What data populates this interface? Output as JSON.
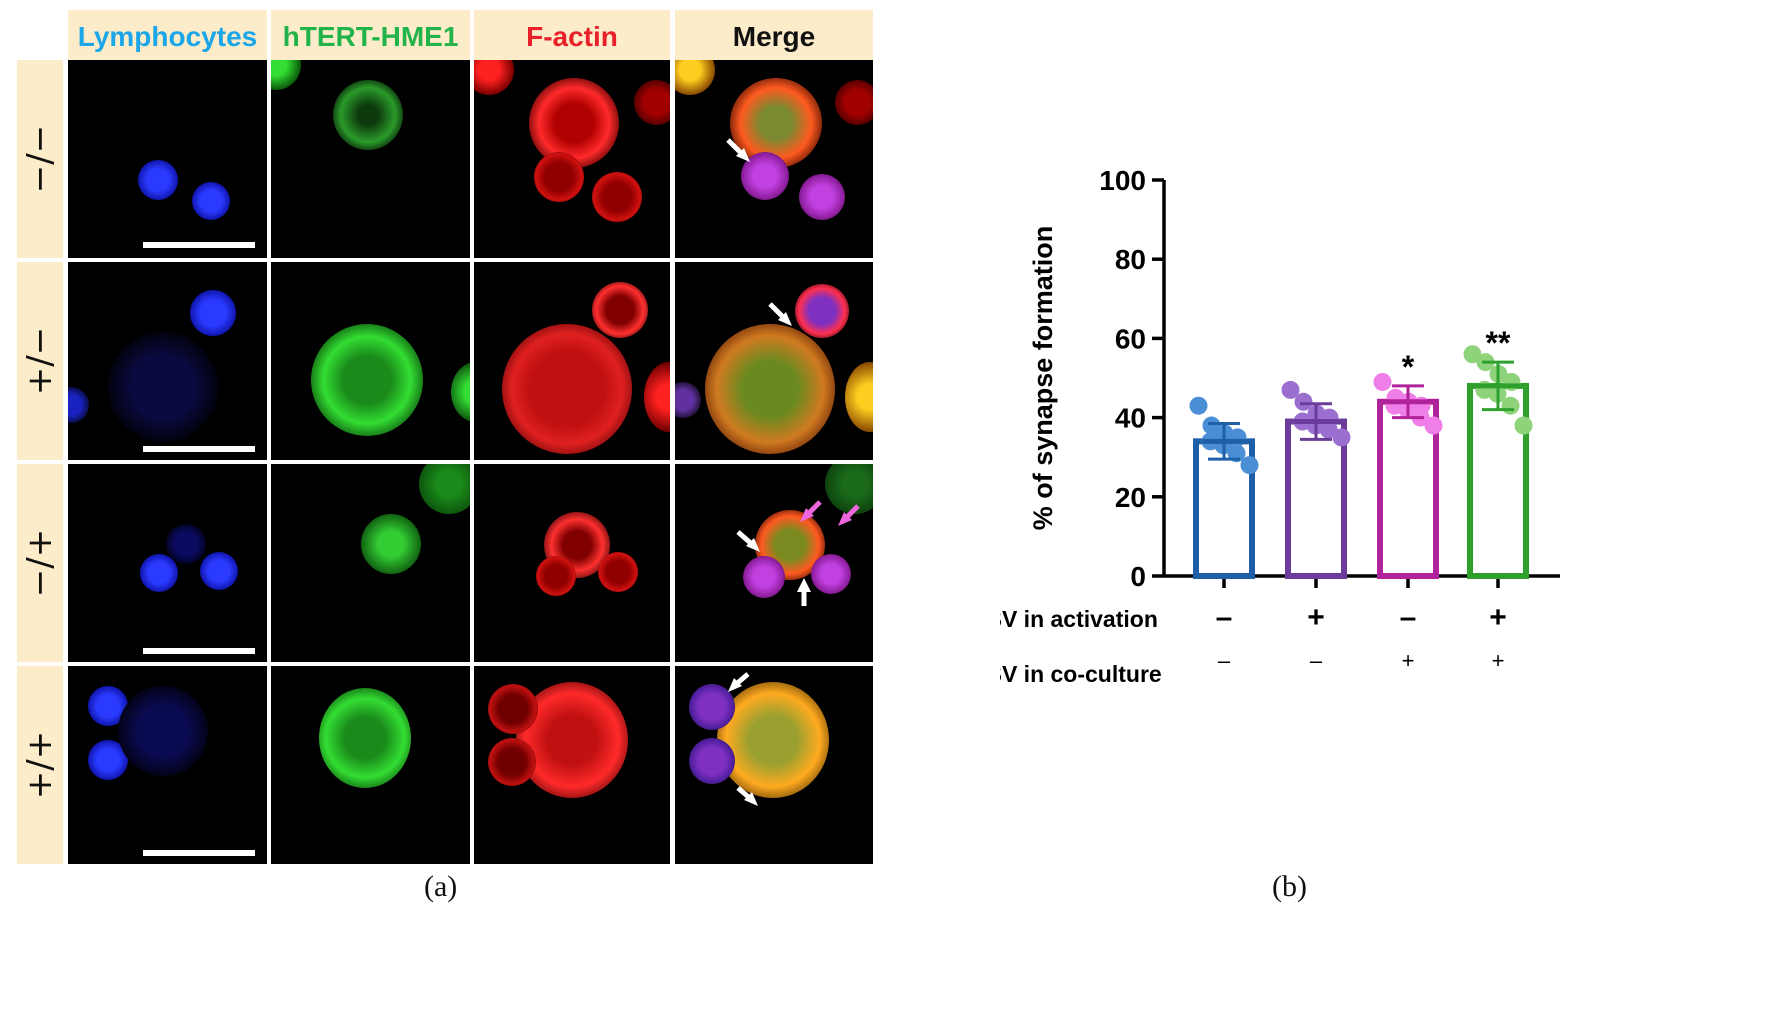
{
  "panel_a": {
    "column_headers": [
      {
        "label": "Lymphocytes",
        "color": "#1aa6e8"
      },
      {
        "label": "hTERT-HME1",
        "color": "#22b34a"
      },
      {
        "label": "F-actin",
        "color": "#e8202a"
      },
      {
        "label": "Merge",
        "color": "#111111"
      }
    ],
    "row_labels": [
      "−/−",
      "+/−",
      "−/+",
      "+/+"
    ],
    "caption": "(a)"
  },
  "panel_b": {
    "caption": "(b)",
    "row_labels": {
      "activation": "RSV in activation",
      "coculture": "RSV in co-culture"
    },
    "activation_signs": [
      "–",
      "+",
      "–",
      "+"
    ],
    "coculture_signs": [
      "–",
      "–",
      "+",
      "+"
    ],
    "significance": [
      "",
      "",
      "*",
      "**"
    ]
  },
  "chart_data": {
    "type": "bar",
    "ylabel": "% of synapse formation",
    "ylim": [
      0,
      100
    ],
    "yticks": [
      0,
      20,
      40,
      60,
      80,
      100
    ],
    "categories": [
      "–/–",
      "+/–",
      "–/+",
      "+/+"
    ],
    "values": [
      34,
      39,
      44,
      48
    ],
    "sd": [
      4.5,
      4.5,
      4,
      6
    ],
    "bar_colors": [
      "#1e5fa8",
      "#6a3d9a",
      "#b0239a",
      "#2ea02e"
    ],
    "point_colors": [
      "#4a8fd6",
      "#9a6fd0",
      "#f07ee8",
      "#8ed37a"
    ],
    "points": [
      [
        43,
        38,
        36,
        35,
        34,
        33,
        31,
        28
      ],
      [
        47,
        44,
        41,
        40,
        39,
        38,
        37,
        35
      ],
      [
        49,
        45,
        44,
        43,
        43,
        42,
        40,
        38
      ],
      [
        56,
        54,
        51,
        49,
        47,
        46,
        43,
        38
      ]
    ]
  }
}
